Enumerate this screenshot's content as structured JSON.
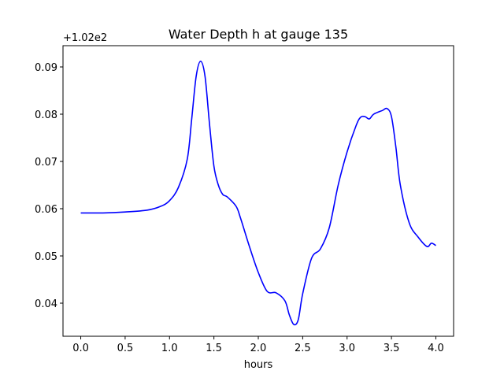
{
  "chart_data": {
    "type": "line",
    "title": "Water Depth h at gauge 135",
    "xlabel": "hours",
    "ylabel": "",
    "offset_label": "+1.02e2",
    "xlim": [
      -0.2,
      4.2
    ],
    "ylim": [
      0.033,
      0.0945
    ],
    "xticks": [
      0.0,
      0.5,
      1.0,
      1.5,
      2.0,
      2.5,
      3.0,
      3.5,
      4.0
    ],
    "xtick_labels": [
      "0.0",
      "0.5",
      "1.0",
      "1.5",
      "2.0",
      "2.5",
      "3.0",
      "3.5",
      "4.0"
    ],
    "yticks": [
      0.04,
      0.05,
      0.06,
      0.07,
      0.08,
      0.09
    ],
    "ytick_labels": [
      "0.04",
      "0.05",
      "0.06",
      "0.07",
      "0.08",
      "0.09"
    ],
    "grid": false,
    "series": [
      {
        "color": "#0000ff",
        "x": [
          0.0,
          0.25,
          0.5,
          0.75,
          0.9,
          1.0,
          1.1,
          1.2,
          1.25,
          1.3,
          1.35,
          1.4,
          1.45,
          1.5,
          1.55,
          1.6,
          1.65,
          1.75,
          1.8,
          1.9,
          2.0,
          2.1,
          2.2,
          2.3,
          2.35,
          2.4,
          2.45,
          2.5,
          2.6,
          2.7,
          2.8,
          2.9,
          3.0,
          3.1,
          3.15,
          3.2,
          3.25,
          3.3,
          3.4,
          3.45,
          3.5,
          3.55,
          3.6,
          3.7,
          3.8,
          3.9,
          3.95,
          4.0
        ],
        "y": [
          0.0591,
          0.0591,
          0.0593,
          0.0597,
          0.0605,
          0.0617,
          0.0645,
          0.0705,
          0.079,
          0.088,
          0.0912,
          0.088,
          0.078,
          0.069,
          0.065,
          0.063,
          0.0625,
          0.0605,
          0.058,
          0.052,
          0.0465,
          0.0425,
          0.0422,
          0.0405,
          0.0375,
          0.0355,
          0.0365,
          0.042,
          0.0495,
          0.0515,
          0.056,
          0.065,
          0.072,
          0.0775,
          0.0793,
          0.0795,
          0.079,
          0.08,
          0.0808,
          0.0812,
          0.0795,
          0.073,
          0.065,
          0.057,
          0.054,
          0.052,
          0.0527,
          0.0522
        ]
      }
    ]
  }
}
